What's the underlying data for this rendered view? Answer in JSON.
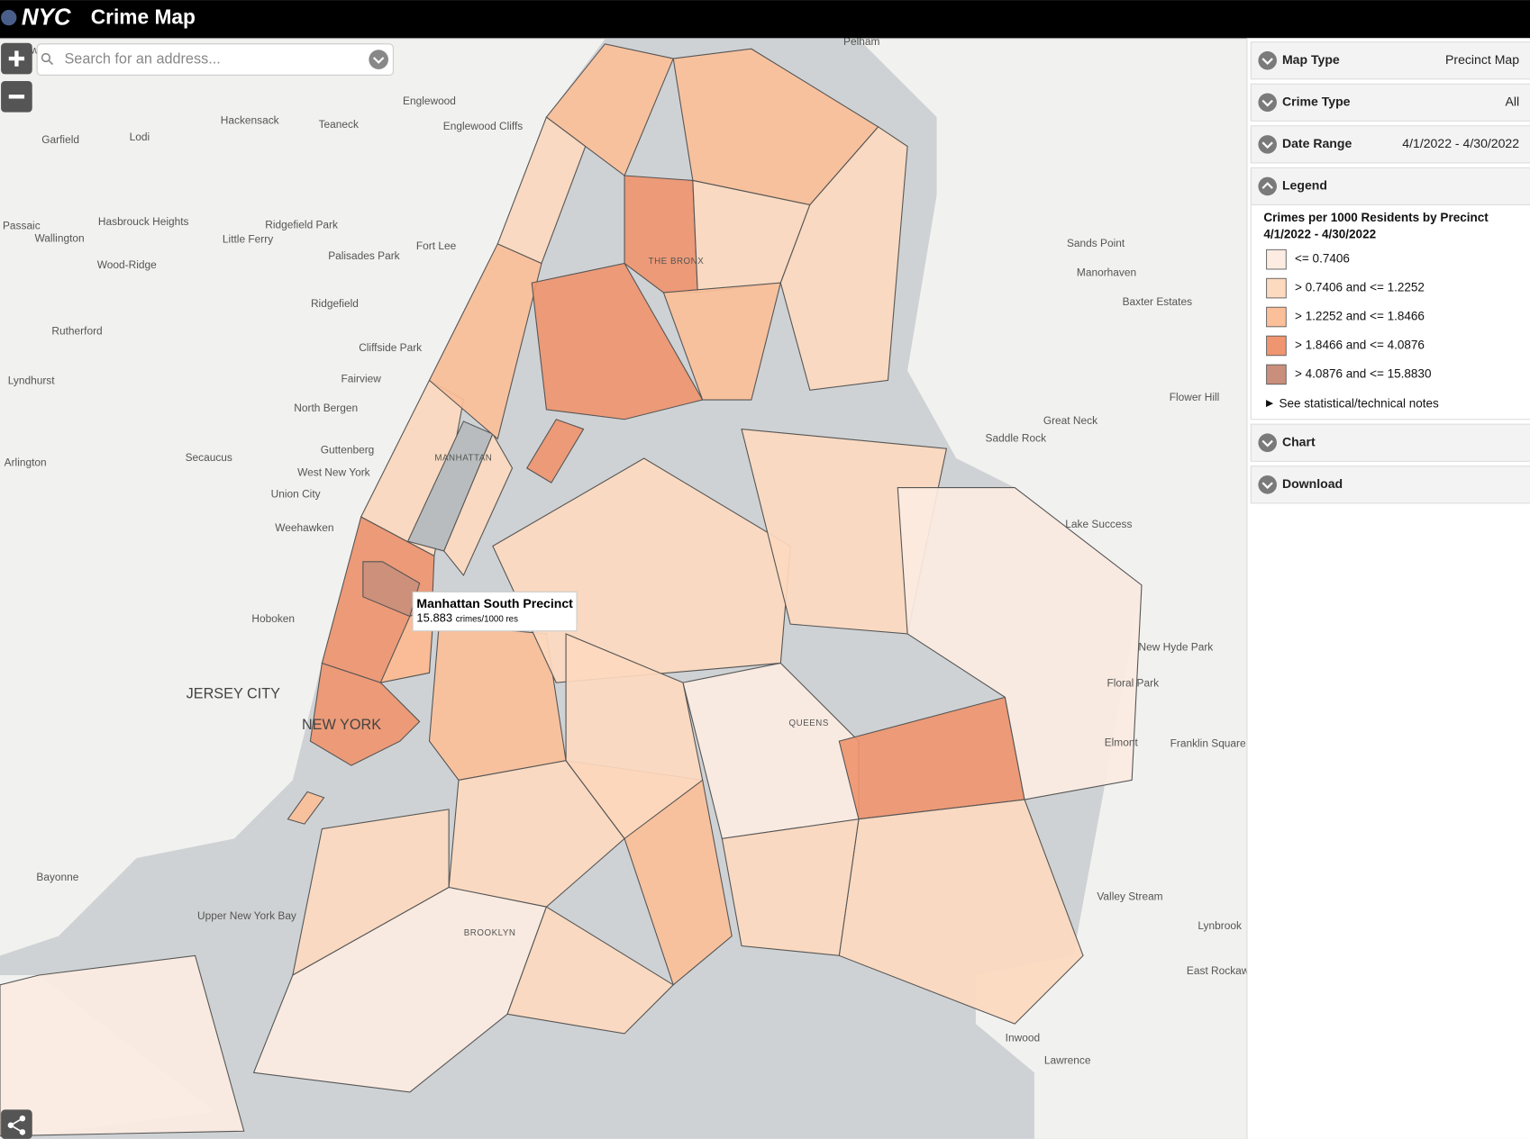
{
  "header": {
    "logo": "NYC",
    "title": "Crime Map"
  },
  "search": {
    "placeholder": "Search for an address..."
  },
  "panel": {
    "map_type": {
      "label": "Map Type",
      "value": "Precinct Map"
    },
    "crime_type": {
      "label": "Crime Type",
      "value": "All"
    },
    "date_range": {
      "label": "Date Range",
      "value": "4/1/2022 - 4/30/2022"
    },
    "legend": {
      "label": "Legend",
      "title": "Crimes per 1000 Residents by Precinct",
      "subtitle": "4/1/2022 - 4/30/2022",
      "items": [
        {
          "label": "<= 0.7406",
          "color": "#fcece2"
        },
        {
          "label": "> 0.7406 and <= 1.2252",
          "color": "#fdd9bf"
        },
        {
          "label": "> 1.2252 and <= 1.8466",
          "color": "#fbbf99"
        },
        {
          "label": "> 1.8466 and <= 4.0876",
          "color": "#ef9570"
        },
        {
          "label": "> 4.0876 and <= 15.8830",
          "color": "#c98f7c"
        }
      ],
      "notes": "See statistical/technical notes"
    },
    "chart": {
      "label": "Chart"
    },
    "download": {
      "label": "Download"
    }
  },
  "tooltip": {
    "title": "Manhattan South Precinct",
    "value": "15.883",
    "unit": "crimes/1000 res"
  },
  "map_labels": [
    "Elmwood Park",
    "Pelham",
    "Englewood",
    "Hackensack",
    "Teaneck",
    "Englewood Cliffs",
    "Garfield",
    "Lodi",
    "Hasbrouck Heights",
    "Passaic",
    "Wallington",
    "Little Ferry",
    "Ridgefield Park",
    "Fort Lee",
    "Palisades Park",
    "Wood-Ridge",
    "Ridgefield",
    "Rutherford",
    "Cliffside Park",
    "Lyndhurst",
    "Fairview",
    "North Bergen",
    "Secaucus",
    "Guttenberg",
    "West New York",
    "Arlington",
    "Union City",
    "Weehawken",
    "Hoboken",
    "JERSEY CITY",
    "NEW YORK",
    "Bayonne",
    "Upper New York Bay",
    "BROOKLYN",
    "QUEENS",
    "MANHATTAN",
    "THE BRONX",
    "Sands Point",
    "Manorhaven",
    "Baxter Estates",
    "Flower Hill",
    "Great Neck",
    "Saddle Rock",
    "Lake Success",
    "New Hyde Park",
    "Floral Park",
    "Elmont",
    "Franklin Square",
    "Valley Stream",
    "Lynbrook",
    "East Rockaway",
    "Inwood",
    "Lawrence"
  ]
}
